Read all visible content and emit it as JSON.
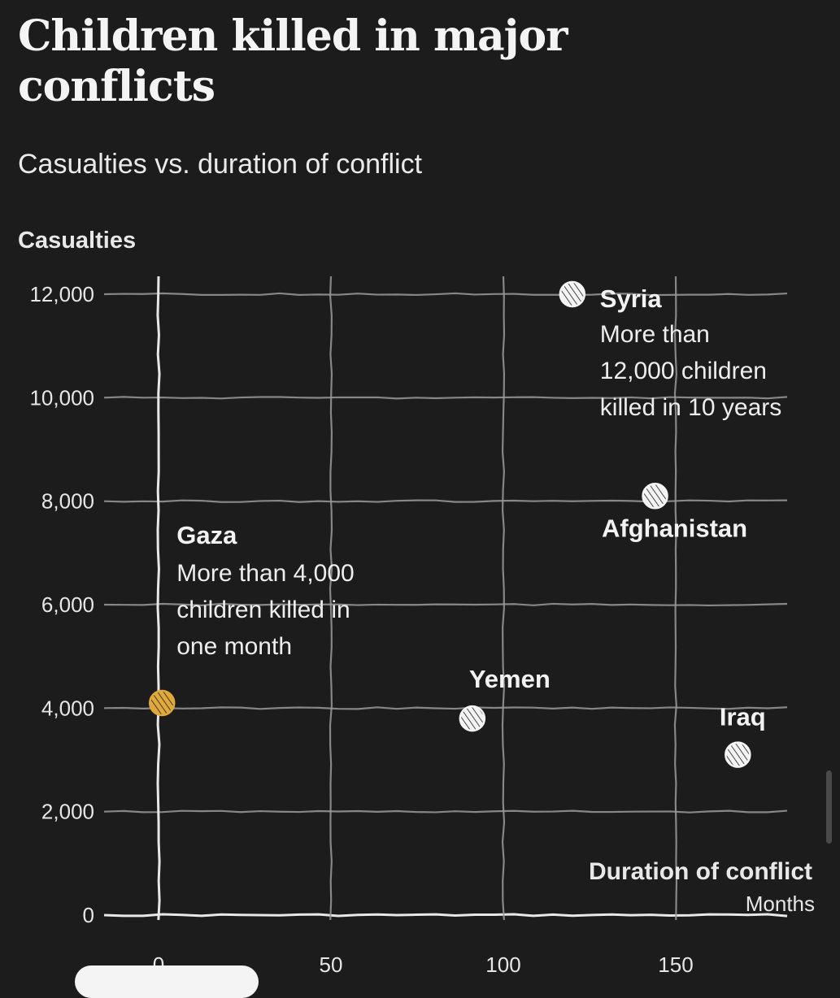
{
  "header": {
    "title": "Children killed in major conflicts",
    "subtitle": "Casualties vs. duration of conflict"
  },
  "colors": {
    "background": "#1c1c1c",
    "highlight": "#e0a93b",
    "point": "#f4f4f4"
  },
  "chart_data": {
    "type": "scatter",
    "title": "Children killed in major conflicts",
    "subtitle": "Casualties vs. duration of conflict",
    "ylabel": "Casualties",
    "xlabel": "Duration of conflict",
    "xunit": "Months",
    "xlim": [
      0,
      185
    ],
    "ylim": [
      0,
      12000
    ],
    "xticks": [
      0,
      50,
      100,
      150
    ],
    "xtick_labels": [
      "0",
      "50",
      "100",
      "150"
    ],
    "yticks": [
      0,
      2000,
      4000,
      6000,
      8000,
      10000,
      12000
    ],
    "ytick_labels": [
      "0",
      "2,000",
      "4,000",
      "6,000",
      "8,000",
      "10,000",
      "12,000"
    ],
    "grid": true,
    "points": [
      {
        "name": "Gaza",
        "x": 1,
        "y": 4100,
        "highlight": true,
        "note": [
          "More than 4,000",
          "children killed in",
          "one month"
        ]
      },
      {
        "name": "Yemen",
        "x": 91,
        "y": 3800,
        "highlight": false,
        "note": []
      },
      {
        "name": "Syria",
        "x": 120,
        "y": 12000,
        "highlight": false,
        "note": [
          "More than",
          "12,000 children",
          "killed in 10 years"
        ]
      },
      {
        "name": "Afghanistan",
        "x": 144,
        "y": 8100,
        "highlight": false,
        "note": []
      },
      {
        "name": "Iraq",
        "x": 168,
        "y": 3100,
        "highlight": false,
        "note": []
      }
    ]
  }
}
